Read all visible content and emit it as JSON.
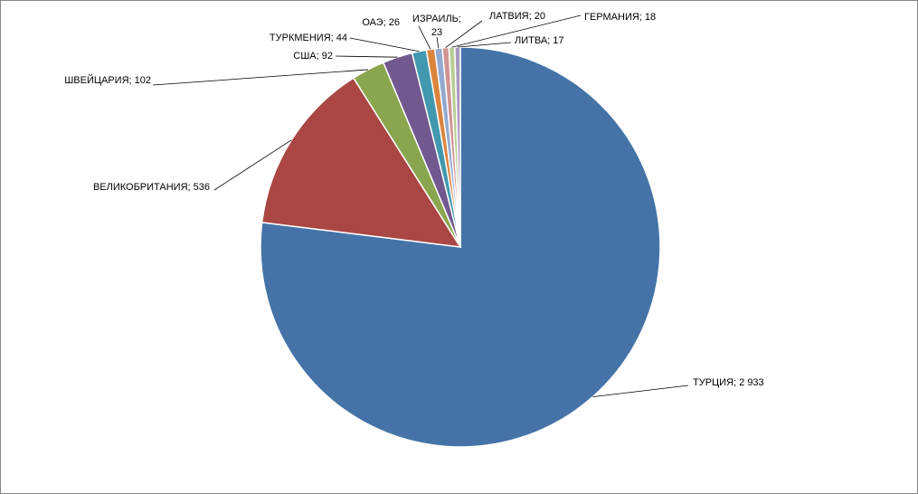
{
  "chart_data": {
    "type": "pie",
    "series": [
      {
        "values": [
          2933,
          536,
          102,
          92,
          44,
          26,
          23,
          20,
          18,
          17
        ],
        "categories": [
          "ТУРЦИЯ",
          "ВЕЛИКОБРИТАНИЯ",
          "ШВЕЙЦАРИЯ",
          "США",
          "ТУРКМЕНИЯ",
          "ОАЭ",
          "ИЗРАИЛЬ",
          "ЛАТВИЯ",
          "ГЕРМАНИЯ",
          "ЛИТВА"
        ]
      }
    ],
    "data_labels": [
      [
        "ТУРЦИЯ; 2 933"
      ],
      [
        "ВЕЛИКОБРИТАНИЯ;  536"
      ],
      [
        "ШВЕЙЦАРИЯ;  102"
      ],
      [
        "США; 92"
      ],
      [
        "ТУРКМЕНИЯ;  44"
      ],
      [
        "ОАЭ; 26"
      ],
      [
        "ИЗРАИЛЬ;",
        "23"
      ],
      [
        "ЛАТВИЯ; 20"
      ],
      [
        "ГЕРМАНИЯ;  18"
      ],
      [
        "ЛИТВА; 17"
      ]
    ],
    "colors": [
      "#4573A7",
      "#AA4643",
      "#89A54E",
      "#71588F",
      "#4198AF",
      "#DB843D",
      "#93A9CF",
      "#D19392",
      "#B9CD96",
      "#A99BBD"
    ],
    "start_angle_deg": 0,
    "direction": "clockwise",
    "legend": "none"
  }
}
